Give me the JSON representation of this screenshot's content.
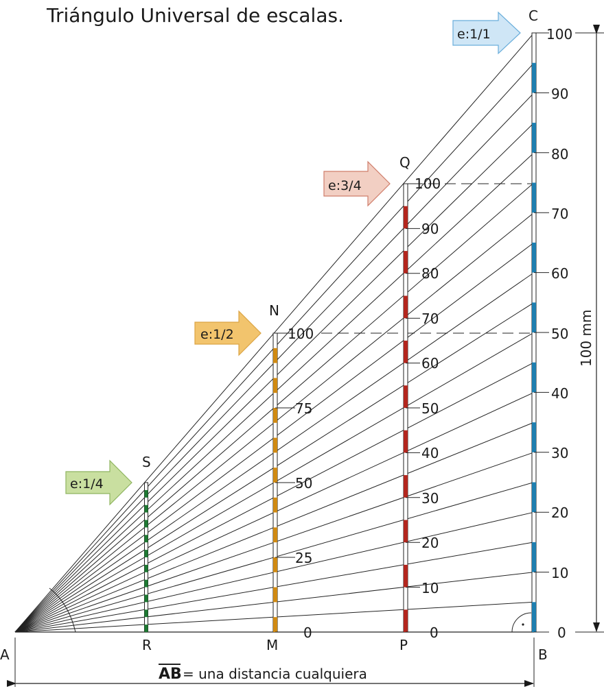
{
  "title": "Triángulo Universal de escalas.",
  "points": {
    "A": "A",
    "B": "B",
    "C": "C",
    "N": "N",
    "M": "M",
    "Q": "Q",
    "P": "P",
    "S": "S",
    "R": "R"
  },
  "scales": [
    {
      "key": "s11",
      "label": "e:1/1",
      "fill": "#cfe6f6",
      "stroke": "#6aaedb",
      "bar": "#1e7fb0"
    },
    {
      "key": "s34",
      "label": "e:3/4",
      "fill": "#f2cfc3",
      "stroke": "#cf7d6a",
      "bar": "#b3261e"
    },
    {
      "key": "s12",
      "label": "e:1/2",
      "fill": "#f2c46d",
      "stroke": "#dba444",
      "bar": "#d08a12"
    },
    {
      "key": "s14",
      "label": "e:1/4",
      "fill": "#c9dfa0",
      "stroke": "#8fb560",
      "bar": "#1e7a33"
    }
  ],
  "ticks_b": [
    "100",
    "90",
    "80",
    "70",
    "60",
    "50",
    "40",
    "30",
    "20",
    "10",
    "0"
  ],
  "ticks_p": [
    "100",
    "90",
    "80",
    "70",
    "60",
    "50",
    "40",
    "30",
    "20",
    "10",
    "0"
  ],
  "ticks_m": [
    "100",
    "75",
    "50",
    "25",
    "0"
  ],
  "dimension_label": "100 mm",
  "ab_text": "AB",
  "ab_rest": "= una distancia cualquiera"
}
